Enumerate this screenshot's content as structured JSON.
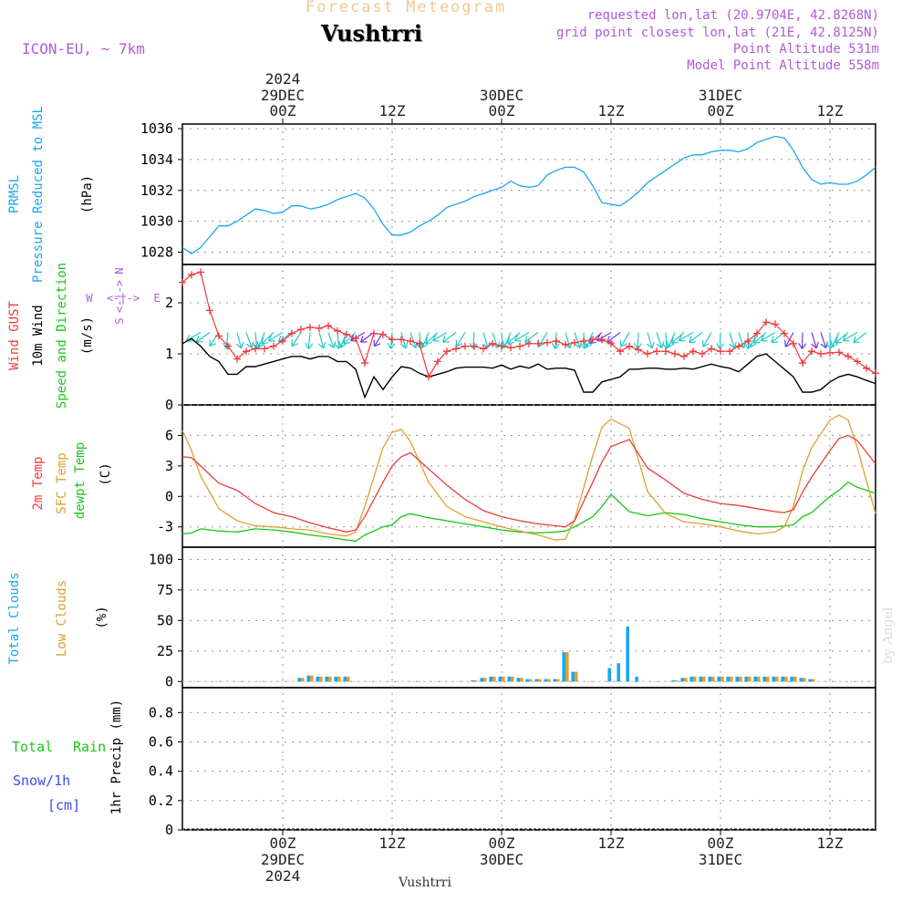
{
  "header": {
    "product": "Forecast Meteogram",
    "location": "Vushtrri",
    "model": "ICON-EU, ~ 7km",
    "requested": "requested lon,lat (20.9704E, 42.8268N)",
    "grid_point": "grid point closest lon,lat (21E, 42.8125N)",
    "point_altitude": "Point Altitude 531m",
    "model_altitude": "Model Point Altitude 558m",
    "watermark": "by Angel",
    "bottom_location": "Vushtrri"
  },
  "time_axis": {
    "year": "2024",
    "day_labels": [
      "29DEC",
      "30DEC",
      "31DEC"
    ],
    "ticks": [
      {
        "h": 0,
        "label": "00Z"
      },
      {
        "h": 12,
        "label": "12Z"
      },
      {
        "h": 24,
        "label": "00Z"
      },
      {
        "h": 36,
        "label": "12Z"
      },
      {
        "h": 48,
        "label": "00Z"
      },
      {
        "h": 60,
        "label": "12Z"
      }
    ]
  },
  "colors": {
    "pressure": "#1aa7ee",
    "gust": "#ee3b3b",
    "wind": "#000000",
    "windbarb": "#23c8c8",
    "temp2m": "#ee3b3b",
    "sfc": "#e0a030",
    "dewpt": "#18c818",
    "total_clouds": "#1aa7ee",
    "low_clouds": "#e0a030",
    "rain": "#18c818",
    "snow": "#3a4ee8",
    "purple": "#b05ad8",
    "compass": "#b05ad8"
  },
  "chart_data": [
    {
      "type": "line",
      "panel": "pressure",
      "labels": [
        "PRMSL",
        "Pressure Reduced to MSL"
      ],
      "unit": "(hPa)",
      "yticks": [
        "1028",
        "1030",
        "1032",
        "1034",
        "1036"
      ],
      "ylim": [
        1027.2,
        1036.3
      ],
      "xlim": [
        -11,
        65
      ],
      "grid": true,
      "series": [
        {
          "name": "PRMSL",
          "x": [
            -11,
            -10,
            -9,
            -8,
            -7,
            -6,
            -5,
            -4,
            -3,
            -2,
            -1,
            0,
            1,
            2,
            3,
            4,
            5,
            6,
            7,
            8,
            9,
            10,
            11,
            12,
            13,
            14,
            15,
            16,
            17,
            18,
            19,
            20,
            21,
            22,
            23,
            24,
            25,
            26,
            27,
            28,
            29,
            30,
            31,
            32,
            33,
            34,
            35,
            36,
            37,
            38,
            39,
            40,
            41,
            42,
            43,
            44,
            45,
            46,
            47,
            48,
            49,
            50,
            51,
            52,
            53,
            54,
            55,
            56,
            57,
            58,
            59,
            60,
            61,
            62,
            63,
            64,
            65
          ],
          "y": [
            1028.3,
            1027.9,
            1028.3,
            1029.0,
            1029.7,
            1029.7,
            1030.0,
            1030.4,
            1030.8,
            1030.7,
            1030.5,
            1030.6,
            1031.0,
            1031.0,
            1030.8,
            1030.9,
            1031.1,
            1031.4,
            1031.6,
            1031.8,
            1031.5,
            1030.8,
            1029.8,
            1029.1,
            1029.1,
            1029.3,
            1029.7,
            1030.0,
            1030.4,
            1030.9,
            1031.1,
            1031.3,
            1031.6,
            1031.8,
            1032.0,
            1032.2,
            1032.6,
            1032.3,
            1032.2,
            1032.3,
            1033.0,
            1033.3,
            1033.5,
            1033.5,
            1033.2,
            1032.3,
            1031.2,
            1031.1,
            1031.0,
            1031.4,
            1031.9,
            1032.5,
            1032.9,
            1033.3,
            1033.7,
            1034.1,
            1034.3,
            1034.3,
            1034.5,
            1034.6,
            1034.6,
            1034.5,
            1034.7,
            1035.1,
            1035.3,
            1035.5,
            1035.4,
            1034.6,
            1033.5,
            1032.7,
            1032.4,
            1032.5,
            1032.4,
            1032.4,
            1032.6,
            1033.0,
            1033.5
          ]
        }
      ]
    },
    {
      "type": "line",
      "panel": "wind",
      "labels": [
        "Wind GUST",
        "10m Wind",
        "Speed and Direction"
      ],
      "unit": "(m/s)",
      "compass": {
        "n": "N",
        "s": "S",
        "e": "E",
        "w": "W",
        "arrow": "<-|->"
      },
      "yticks": [
        "0",
        "1",
        "2"
      ],
      "ylim": [
        0,
        2.75
      ],
      "xlim": [
        -11,
        65
      ],
      "grid": true,
      "series": [
        {
          "name": "Wind GUST",
          "x": [
            -11,
            -10,
            -9,
            -8,
            -7,
            -6,
            -5,
            -4,
            -3,
            -2,
            -1,
            0,
            1,
            2,
            3,
            4,
            5,
            6,
            7,
            8,
            9,
            10,
            11,
            12,
            13,
            14,
            15,
            16,
            17,
            18,
            19,
            20,
            21,
            22,
            23,
            24,
            25,
            26,
            27,
            28,
            29,
            30,
            31,
            32,
            33,
            34,
            35,
            36,
            37,
            38,
            39,
            40,
            41,
            42,
            43,
            44,
            45,
            46,
            47,
            48,
            49,
            50,
            51,
            52,
            53,
            54,
            55,
            56,
            57,
            58,
            59,
            60,
            61,
            62,
            63,
            64,
            65
          ],
          "y": [
            2.4,
            2.55,
            2.6,
            1.85,
            1.35,
            1.15,
            0.9,
            1.05,
            1.1,
            1.1,
            1.15,
            1.25,
            1.4,
            1.48,
            1.52,
            1.5,
            1.55,
            1.45,
            1.38,
            1.3,
            0.82,
            1.4,
            1.38,
            1.28,
            1.28,
            1.25,
            1.2,
            0.55,
            0.85,
            1.05,
            1.1,
            1.15,
            1.15,
            1.1,
            1.2,
            1.15,
            1.12,
            1.15,
            1.2,
            1.2,
            1.22,
            1.25,
            1.18,
            1.22,
            1.25,
            1.28,
            1.28,
            1.2,
            1.05,
            1.15,
            1.08,
            1.0,
            1.05,
            1.05,
            1.0,
            0.95,
            1.05,
            1.0,
            1.1,
            1.05,
            1.05,
            1.15,
            1.25,
            1.4,
            1.62,
            1.58,
            1.4,
            1.2,
            0.82,
            1.05,
            1.0,
            1.02,
            1.03,
            0.95,
            0.85,
            0.72,
            0.62
          ]
        },
        {
          "name": "10m Wind",
          "x": [
            -11,
            -10,
            -9,
            -8,
            -7,
            -6,
            -5,
            -4,
            -3,
            -2,
            -1,
            0,
            1,
            2,
            3,
            4,
            5,
            6,
            7,
            8,
            9,
            10,
            11,
            12,
            13,
            14,
            15,
            16,
            17,
            18,
            19,
            20,
            21,
            22,
            23,
            24,
            25,
            26,
            27,
            28,
            29,
            30,
            31,
            32,
            33,
            34,
            35,
            36,
            37,
            38,
            39,
            40,
            41,
            42,
            43,
            44,
            45,
            46,
            47,
            48,
            49,
            50,
            51,
            52,
            53,
            54,
            55,
            56,
            57,
            58,
            59,
            60,
            61,
            62,
            63,
            64,
            65
          ],
          "y": [
            1.2,
            1.3,
            1.15,
            0.95,
            0.85,
            0.6,
            0.6,
            0.75,
            0.75,
            0.8,
            0.85,
            0.9,
            0.95,
            0.95,
            0.9,
            0.95,
            0.95,
            0.85,
            0.85,
            0.7,
            0.15,
            0.55,
            0.3,
            0.55,
            0.75,
            0.72,
            0.62,
            0.55,
            0.6,
            0.65,
            0.72,
            0.74,
            0.74,
            0.74,
            0.72,
            0.78,
            0.7,
            0.76,
            0.72,
            0.8,
            0.7,
            0.72,
            0.72,
            0.68,
            0.25,
            0.25,
            0.45,
            0.5,
            0.55,
            0.7,
            0.7,
            0.72,
            0.72,
            0.7,
            0.7,
            0.72,
            0.7,
            0.75,
            0.8,
            0.75,
            0.72,
            0.65,
            0.8,
            0.95,
            1.0,
            0.85,
            0.7,
            0.55,
            0.25,
            0.25,
            0.3,
            0.45,
            0.55,
            0.6,
            0.55,
            0.48,
            0.42
          ]
        }
      ]
    },
    {
      "type": "line",
      "panel": "temperature",
      "labels": [
        "2m Temp",
        "SFC Temp",
        "dewpt Temp"
      ],
      "unit": "(C)",
      "yticks": [
        "-3",
        "0",
        "3",
        "6"
      ],
      "ylim": [
        -5,
        9
      ],
      "xlim": [
        -11,
        65
      ],
      "grid": true,
      "series": [
        {
          "name": "2m Temp",
          "x": [
            -11,
            -10,
            -9,
            -7,
            -5,
            -3,
            -1,
            1,
            3,
            5,
            7,
            8,
            9,
            11,
            12,
            13,
            14,
            16,
            18,
            20,
            22,
            24,
            26,
            28,
            30,
            31,
            32,
            34,
            35,
            36,
            38,
            40,
            42,
            44,
            46,
            48,
            50,
            52,
            54,
            55,
            56,
            57,
            58,
            60,
            61,
            62,
            63,
            65
          ],
          "y": [
            3.9,
            3.8,
            3.0,
            1.3,
            0.6,
            -0.7,
            -1.6,
            -2.0,
            -2.6,
            -3.1,
            -3.5,
            -3.3,
            -2.0,
            1.4,
            3.0,
            3.9,
            4.3,
            2.7,
            1.1,
            -0.3,
            -1.4,
            -2.0,
            -2.4,
            -2.7,
            -2.9,
            -3.0,
            -2.4,
            1.4,
            3.4,
            4.9,
            5.6,
            2.8,
            1.6,
            0.3,
            -0.3,
            -0.7,
            -0.9,
            -1.2,
            -1.5,
            -1.6,
            -1.3,
            0.4,
            1.9,
            4.5,
            5.7,
            6.0,
            5.5,
            3.2
          ]
        },
        {
          "name": "SFC Temp",
          "x": [
            -11,
            -10,
            -9,
            -7,
            -5,
            -3,
            -1,
            1,
            3,
            5,
            7,
            8,
            9,
            11,
            12,
            13,
            14,
            16,
            18,
            20,
            22,
            24,
            26,
            28,
            30,
            31,
            32,
            34,
            35,
            36,
            38,
            40,
            42,
            44,
            46,
            48,
            50,
            52,
            54,
            55,
            56,
            57,
            58,
            60,
            61,
            62,
            63,
            65
          ],
          "y": [
            6.5,
            4.5,
            2.0,
            -1.2,
            -2.4,
            -2.9,
            -3.0,
            -3.2,
            -3.3,
            -3.7,
            -3.9,
            -3.5,
            -1.0,
            4.8,
            6.3,
            6.6,
            5.4,
            1.4,
            -1.0,
            -2.0,
            -2.5,
            -3.0,
            -3.4,
            -3.8,
            -4.3,
            -4.2,
            -2.3,
            4.0,
            6.8,
            7.6,
            6.7,
            0.5,
            -1.7,
            -2.5,
            -2.7,
            -3.0,
            -3.4,
            -3.7,
            -3.5,
            -3.0,
            -1.0,
            2.5,
            4.8,
            7.5,
            8.0,
            7.5,
            4.8,
            -1.7
          ]
        },
        {
          "name": "dewpt Temp",
          "x": [
            -11,
            -10,
            -9,
            -7,
            -5,
            -3,
            -1,
            1,
            3,
            5,
            7,
            8,
            9,
            11,
            12,
            13,
            14,
            16,
            18,
            20,
            22,
            24,
            26,
            28,
            30,
            31,
            32,
            34,
            35,
            36,
            38,
            40,
            42,
            44,
            46,
            48,
            50,
            52,
            54,
            55,
            56,
            57,
            58,
            60,
            61,
            62,
            63,
            65
          ],
          "y": [
            -3.7,
            -3.6,
            -3.2,
            -3.4,
            -3.5,
            -3.2,
            -3.3,
            -3.5,
            -3.8,
            -4.0,
            -4.3,
            -4.4,
            -3.8,
            -3.0,
            -2.8,
            -2.0,
            -1.7,
            -2.1,
            -2.4,
            -2.7,
            -3.0,
            -3.3,
            -3.5,
            -3.6,
            -3.5,
            -3.4,
            -3.0,
            -2.0,
            -1.0,
            0.2,
            -1.5,
            -1.9,
            -1.6,
            -1.8,
            -2.2,
            -2.5,
            -2.8,
            -3.0,
            -3.0,
            -2.9,
            -2.8,
            -2.0,
            -1.6,
            0.0,
            0.6,
            1.4,
            0.9,
            0.3
          ]
        }
      ]
    },
    {
      "type": "bar",
      "panel": "clouds",
      "labels": [
        "Total Clouds",
        "Low Clouds"
      ],
      "unit": "(%)",
      "yticks": [
        "0",
        "25",
        "50",
        "75",
        "100"
      ],
      "ylim": [
        -5,
        110
      ],
      "xlim": [
        -11,
        65
      ],
      "grid": true,
      "series": [
        {
          "name": "Total Clouds",
          "x": [
            2,
            3,
            4,
            5,
            6,
            7,
            21,
            22,
            23,
            24,
            25,
            26,
            27,
            28,
            29,
            30,
            31,
            32,
            36,
            37,
            38,
            39,
            43,
            44,
            45,
            46,
            47,
            48,
            49,
            50,
            51,
            52,
            53,
            54,
            55,
            56,
            57,
            58
          ],
          "values": [
            3,
            5,
            4,
            4,
            4,
            4,
            1,
            3,
            4,
            4,
            4,
            3,
            2,
            2,
            2,
            2,
            24,
            8,
            11,
            15,
            45,
            4,
            1,
            3,
            4,
            4,
            4,
            4,
            4,
            4,
            4,
            4,
            4,
            4,
            4,
            4,
            3,
            2
          ]
        },
        {
          "name": "Low Clouds",
          "x": [
            2,
            3,
            4,
            5,
            6,
            7,
            21,
            22,
            23,
            24,
            25,
            26,
            27,
            28,
            29,
            30,
            31,
            32,
            36,
            37,
            38,
            39,
            43,
            44,
            45,
            46,
            47,
            48,
            49,
            50,
            51,
            52,
            53,
            54,
            55,
            56,
            57,
            58
          ],
          "values": [
            3,
            5,
            4,
            4,
            4,
            4,
            1,
            3,
            4,
            4,
            4,
            3,
            2,
            2,
            2,
            2,
            24,
            8,
            0,
            0,
            0,
            0,
            1,
            3,
            4,
            4,
            4,
            4,
            4,
            4,
            4,
            4,
            4,
            4,
            4,
            4,
            3,
            2
          ]
        }
      ]
    },
    {
      "type": "bar",
      "panel": "precip",
      "labels": [
        "Total",
        "Rain",
        "Snow/1h",
        "[cm]"
      ],
      "unit": "1hr Precip (mm)",
      "yticks": [
        "0",
        "0.2",
        "0.4",
        "0.6",
        "0.8"
      ],
      "ylim": [
        0,
        0.97
      ],
      "xlim": [
        -11,
        65
      ],
      "grid": true,
      "series": []
    }
  ]
}
